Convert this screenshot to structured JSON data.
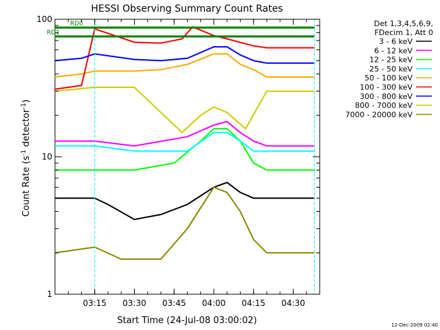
{
  "chart_data": {
    "type": "line",
    "title": "HESSI Observing Summary Count Rates",
    "xlabel": "Start Time (24-Jul-08 03:00:02)",
    "ylabel_text": "Count Rate (s",
    "ylabel_exp": "-1",
    "ylabel_tail": " detector",
    "ylabel_close": ")",
    "y_scale": "log",
    "ylim": [
      1,
      100
    ],
    "xlim": [
      "03:00",
      "04:40"
    ],
    "x_ticks": [
      "03:15",
      "03:30",
      "03:45",
      "04:00",
      "04:15",
      "04:30"
    ],
    "y_ticks": [
      "1",
      "10",
      "100"
    ],
    "timestamp": "12-Dec-2009 02:40",
    "legend": {
      "header": [
        "Det 1,3,4,5,6,9,",
        "FDecim 1, Att 0"
      ],
      "placement": "right"
    },
    "series": [
      {
        "name": "3 - 6 keV",
        "color": "#000000",
        "values": [
          [
            "03:00",
            5.0
          ],
          [
            "03:10",
            5.0
          ],
          [
            "03:15",
            5.0
          ],
          [
            "03:20",
            4.5
          ],
          [
            "03:30",
            3.5
          ],
          [
            "03:40",
            3.8
          ],
          [
            "03:50",
            4.5
          ],
          [
            "04:00",
            6.0
          ],
          [
            "04:05",
            6.5
          ],
          [
            "04:10",
            5.5
          ],
          [
            "04:15",
            5.0
          ],
          [
            "04:20",
            5.0
          ],
          [
            "04:30",
            5.0
          ],
          [
            "04:38",
            5.0
          ]
        ]
      },
      {
        "name": "6 - 12 keV",
        "color": "#ff00ff",
        "values": [
          [
            "03:00",
            13
          ],
          [
            "03:15",
            13
          ],
          [
            "03:30",
            12
          ],
          [
            "03:50",
            14
          ],
          [
            "04:00",
            17
          ],
          [
            "04:05",
            18
          ],
          [
            "04:10",
            15
          ],
          [
            "04:15",
            13
          ],
          [
            "04:20",
            12
          ],
          [
            "04:30",
            12
          ],
          [
            "04:38",
            12
          ]
        ]
      },
      {
        "name": "12 - 25 keV",
        "color": "#00ff00",
        "values": [
          [
            "03:00",
            8
          ],
          [
            "03:15",
            8
          ],
          [
            "03:30",
            8
          ],
          [
            "03:45",
            9
          ],
          [
            "03:55",
            13
          ],
          [
            "04:00",
            16
          ],
          [
            "04:05",
            16
          ],
          [
            "04:10",
            13
          ],
          [
            "04:15",
            9
          ],
          [
            "04:20",
            8
          ],
          [
            "04:30",
            8
          ],
          [
            "04:38",
            8
          ]
        ]
      },
      {
        "name": "25 - 50 keV",
        "color": "#00ffff",
        "values": [
          [
            "03:00",
            12
          ],
          [
            "03:15",
            12
          ],
          [
            "03:30",
            11
          ],
          [
            "03:50",
            11
          ],
          [
            "04:00",
            15
          ],
          [
            "04:05",
            15
          ],
          [
            "04:10",
            13
          ],
          [
            "04:15",
            11
          ],
          [
            "04:20",
            11
          ],
          [
            "04:30",
            11
          ],
          [
            "04:38",
            11
          ]
        ]
      },
      {
        "name": "50 - 100 keV",
        "color": "#ffaa00",
        "values": [
          [
            "03:00",
            38
          ],
          [
            "03:10",
            40
          ],
          [
            "03:15",
            42
          ],
          [
            "03:30",
            42
          ],
          [
            "03:40",
            43
          ],
          [
            "03:50",
            47
          ],
          [
            "04:00",
            56
          ],
          [
            "04:05",
            56
          ],
          [
            "04:10",
            47
          ],
          [
            "04:15",
            43
          ],
          [
            "04:20",
            38
          ],
          [
            "04:30",
            38
          ],
          [
            "04:38",
            38
          ]
        ]
      },
      {
        "name": "100 - 300 keV",
        "color": "#ff0000",
        "values": [
          [
            "03:00",
            31
          ],
          [
            "03:10",
            33
          ],
          [
            "03:15",
            85
          ],
          [
            "03:30",
            68
          ],
          [
            "03:40",
            67
          ],
          [
            "03:48",
            72
          ],
          [
            "03:52",
            88
          ],
          [
            "04:00",
            76
          ],
          [
            "04:05",
            72
          ],
          [
            "04:15",
            64
          ],
          [
            "04:20",
            62
          ],
          [
            "04:30",
            62
          ],
          [
            "04:38",
            62
          ]
        ]
      },
      {
        "name": "300 - 800 keV",
        "color": "#0000ff",
        "values": [
          [
            "03:00",
            50
          ],
          [
            "03:10",
            52
          ],
          [
            "03:15",
            56
          ],
          [
            "03:30",
            51
          ],
          [
            "03:40",
            50
          ],
          [
            "03:50",
            52
          ],
          [
            "04:00",
            63
          ],
          [
            "04:05",
            63
          ],
          [
            "04:10",
            55
          ],
          [
            "04:15",
            50
          ],
          [
            "04:20",
            48
          ],
          [
            "04:30",
            48
          ],
          [
            "04:38",
            48
          ]
        ]
      },
      {
        "name": "800 - 7000 keV",
        "color": "#cccc00",
        "values": [
          [
            "03:00",
            30
          ],
          [
            "03:15",
            32
          ],
          [
            "03:30",
            32
          ],
          [
            "03:48",
            15
          ],
          [
            "03:55",
            20
          ],
          [
            "04:00",
            23
          ],
          [
            "04:05",
            21
          ],
          [
            "04:12",
            16
          ],
          [
            "04:20",
            30
          ],
          [
            "04:30",
            30
          ],
          [
            "04:38",
            30
          ]
        ]
      },
      {
        "name": "7000 - 20000 keV",
        "color": "#888800",
        "values": [
          [
            "03:00",
            2.0
          ],
          [
            "03:15",
            2.2
          ],
          [
            "03:25",
            1.8
          ],
          [
            "03:40",
            1.8
          ],
          [
            "03:50",
            3.0
          ],
          [
            "04:00",
            6.0
          ],
          [
            "04:05",
            5.5
          ],
          [
            "04:10",
            4.0
          ],
          [
            "04:15",
            2.5
          ],
          [
            "04:20",
            2.0
          ],
          [
            "04:38",
            2.0
          ]
        ]
      }
    ],
    "attenuator_lines": [
      {
        "name": "RD0",
        "color": "#008000",
        "value": 87,
        "start": "03:00",
        "end": "04:38"
      },
      {
        "name": "RD1",
        "color": "#008000",
        "value": 75,
        "start": "03:00",
        "end": "04:38"
      }
    ],
    "markers": [
      {
        "color": "#00ffff",
        "time": "03:15"
      },
      {
        "color": "#00ffff",
        "time": "04:38"
      }
    ]
  }
}
